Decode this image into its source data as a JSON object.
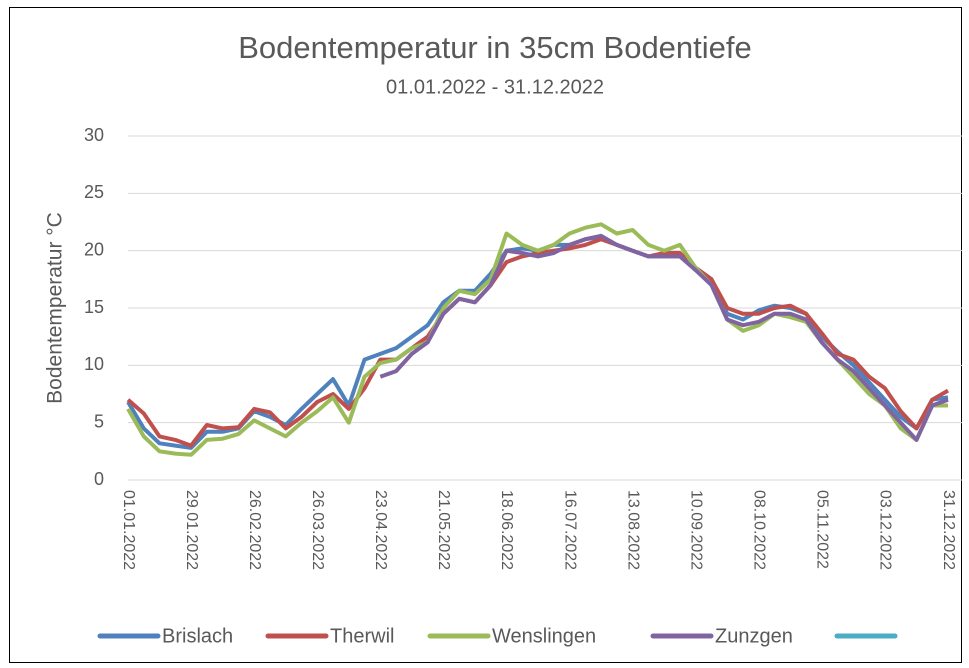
{
  "chart_data": {
    "type": "line",
    "title": "Bodentemperatur in 35cm Bodentiefe",
    "subtitle": "01.01.2022 - 31.12.2022",
    "y_label": "Bodentemperatur °C",
    "categories": [
      "01.01.2022",
      null,
      null,
      null,
      "29.01.2022",
      null,
      null,
      null,
      "26.02.2022",
      null,
      null,
      null,
      "26.03.2022",
      null,
      null,
      null,
      "23.04.2022",
      null,
      null,
      null,
      "21.05.2022",
      null,
      null,
      null,
      "18.06.2022",
      null,
      null,
      null,
      "16.07.2022",
      null,
      null,
      null,
      "13.08.2022",
      null,
      null,
      null,
      "10.09.2022",
      null,
      null,
      null,
      "08.10.2022",
      null,
      null,
      null,
      "05.11.2022",
      null,
      null,
      null,
      "03.12.2022",
      null,
      null,
      null,
      "31.12.2022"
    ],
    "ylim": [
      0,
      30
    ],
    "yticks": [
      0,
      5,
      10,
      15,
      20,
      25,
      30
    ],
    "grid": true,
    "legend": "bottom",
    "series": [
      {
        "name": "Brislach",
        "color": "#4f81bd",
        "values": [
          6.8,
          4.5,
          3.2,
          3.0,
          2.8,
          4.2,
          4.2,
          4.5,
          6.0,
          5.5,
          4.8,
          6.2,
          7.5,
          8.8,
          6.5,
          10.5,
          11,
          11.5,
          12.5,
          13.5,
          15.5,
          16.5,
          16.5,
          18,
          20,
          20.2,
          20.0,
          20.5,
          20.5,
          21,
          21.2,
          20.5,
          20,
          19.5,
          19.5,
          19.5,
          18.5,
          17.5,
          14.5,
          14,
          14.8,
          15.2,
          15,
          14.5,
          12.5,
          11.2,
          10,
          8.5,
          7,
          5.5,
          4.5,
          7,
          7.2
        ]
      },
      {
        "name": "Therwil",
        "color": "#c0504d",
        "values": [
          7,
          5.8,
          3.8,
          3.5,
          3.0,
          4.8,
          4.5,
          4.6,
          6.2,
          5.9,
          4.5,
          5.5,
          6.8,
          7.5,
          6.2,
          8.0,
          10.5,
          10.5,
          11.5,
          12.5,
          14.5,
          15.8,
          15.5,
          17,
          19,
          19.5,
          19.8,
          20,
          20.2,
          20.5,
          21,
          20.5,
          20,
          19.5,
          19.8,
          19.8,
          18.5,
          17.5,
          15,
          14.5,
          14.5,
          15,
          15.2,
          14.5,
          12.8,
          11,
          10.5,
          9,
          8,
          6,
          4.5,
          7,
          7.8
        ]
      },
      {
        "name": "Wenslingen",
        "color": "#9bbb59",
        "values": [
          6.2,
          3.8,
          2.5,
          2.3,
          2.2,
          3.5,
          3.6,
          4.0,
          5.2,
          4.5,
          3.8,
          5.0,
          6.0,
          7.2,
          5.0,
          9.0,
          10.2,
          10.5,
          11.5,
          12.0,
          15,
          16.5,
          16.2,
          17.5,
          21.5,
          20.5,
          20,
          20.5,
          21.5,
          22,
          22.3,
          21.5,
          21.8,
          20.5,
          20,
          20.5,
          18.5,
          17,
          14,
          13,
          13.5,
          14.5,
          14.2,
          13.8,
          12,
          10.5,
          9,
          7.5,
          6.5,
          4.5,
          3.5,
          6.5,
          6.5
        ]
      },
      {
        "name": "Zunzgen",
        "color": "#8064a2",
        "values": [
          null,
          null,
          null,
          null,
          null,
          null,
          null,
          null,
          null,
          null,
          null,
          null,
          null,
          null,
          null,
          null,
          9.0,
          9.5,
          11,
          12,
          14.5,
          15.8,
          15.5,
          17,
          20,
          19.8,
          19.5,
          19.8,
          20.5,
          21,
          21.3,
          20.5,
          20,
          19.5,
          19.5,
          19.5,
          18.3,
          17,
          14,
          13.5,
          13.8,
          14.5,
          14.5,
          14,
          12,
          10.5,
          9.5,
          8,
          6.5,
          5,
          3.5,
          6.5,
          7
        ]
      },
      {
        "name": null,
        "color": "#4bacc6",
        "values": [
          null,
          null,
          null,
          null,
          null,
          null,
          null,
          null,
          null,
          null,
          null,
          null,
          null,
          null,
          null,
          null,
          null,
          null,
          null,
          null,
          null,
          null,
          null,
          null,
          null,
          null,
          null,
          null,
          null,
          null,
          null,
          null,
          null,
          null,
          null,
          null,
          null,
          null,
          null,
          null,
          null,
          null,
          null,
          null,
          null,
          null,
          null,
          null,
          null,
          null,
          null,
          null,
          null
        ]
      }
    ]
  }
}
